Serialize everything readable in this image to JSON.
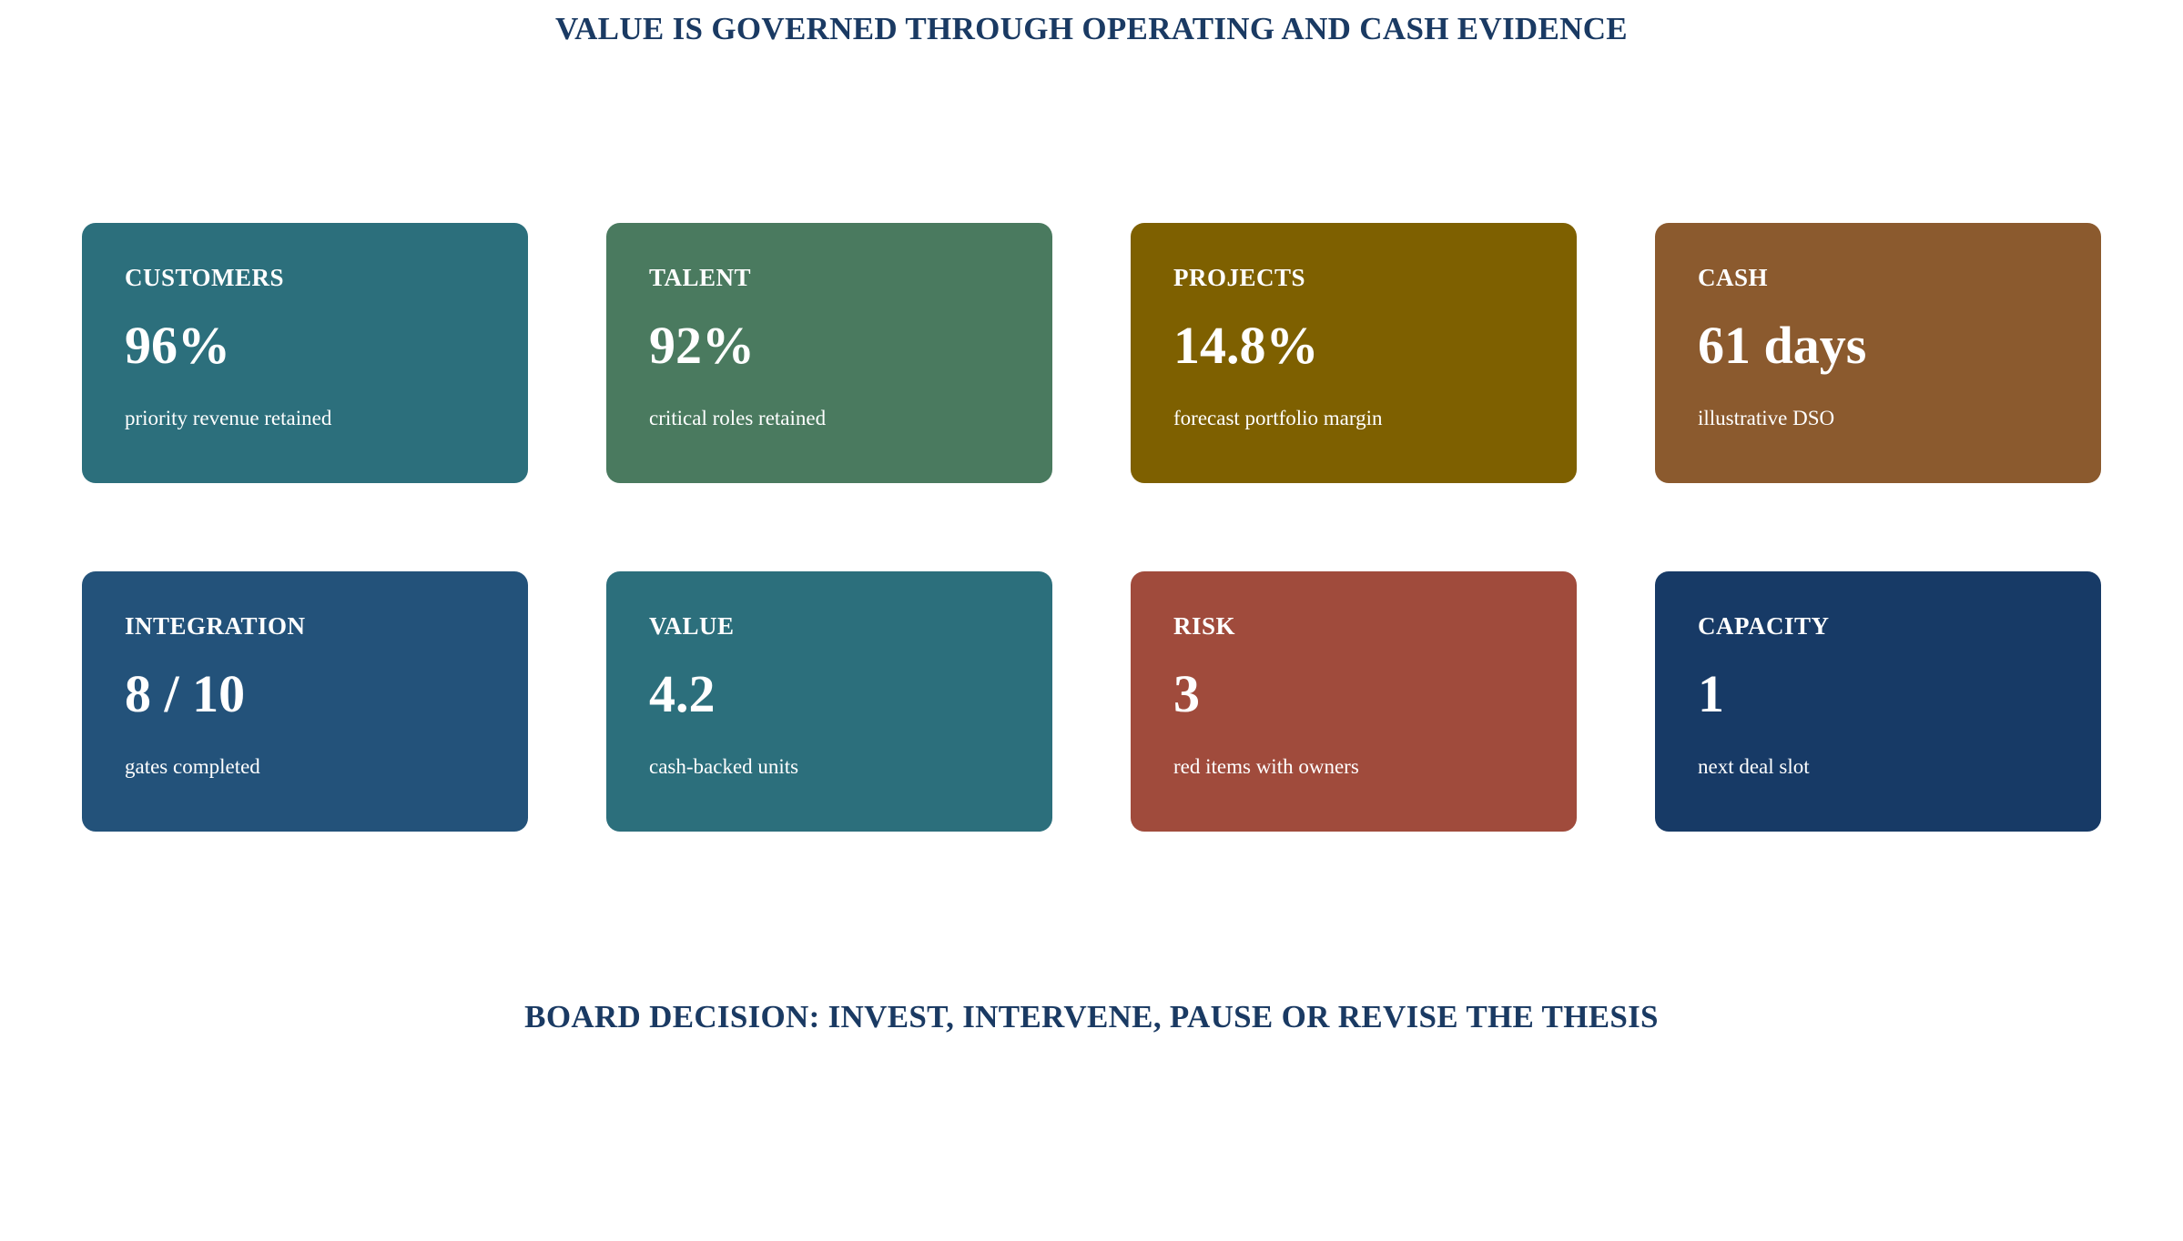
{
  "header": {
    "title": "VALUE IS GOVERNED THROUGH OPERATING AND CASH EVIDENCE"
  },
  "cards": [
    {
      "label": "CUSTOMERS",
      "value": "96%",
      "description": "priority revenue retained",
      "color": "#2c6f7c"
    },
    {
      "label": "TALENT",
      "value": "92%",
      "description": "critical roles retained",
      "color": "#4a7a5f"
    },
    {
      "label": "PROJECTS",
      "value": "14.8%",
      "description": "forecast portfolio margin",
      "color": "#7e6000"
    },
    {
      "label": "CASH",
      "value": "61 days",
      "description": "illustrative DSO",
      "color": "#8b5a2e"
    },
    {
      "label": "INTEGRATION",
      "value": "8 / 10",
      "description": "gates completed",
      "color": "#23527a"
    },
    {
      "label": "VALUE",
      "value": "4.2",
      "description": "cash-backed units",
      "color": "#2c6f7c"
    },
    {
      "label": "RISK",
      "value": "3",
      "description": "red items with owners",
      "color": "#a04b3c"
    },
    {
      "label": "CAPACITY",
      "value": "1",
      "description": "next deal slot",
      "color": "#173a66"
    }
  ],
  "footer": {
    "decision": "BOARD DECISION: INVEST, INTERVENE, PAUSE OR REVISE THE THESIS"
  }
}
